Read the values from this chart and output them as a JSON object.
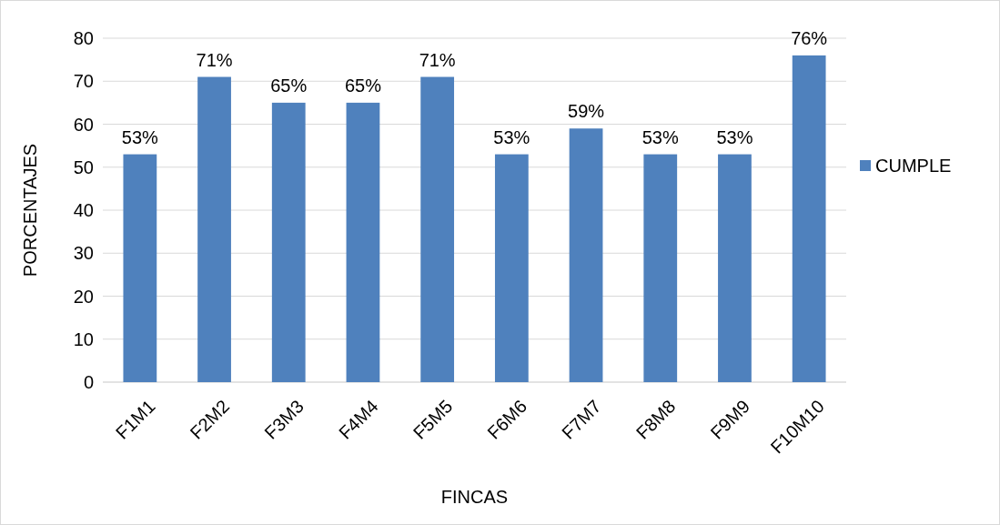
{
  "chart_data": {
    "type": "bar",
    "xlabel": "FINCAS",
    "ylabel": "PORCENTAJES",
    "categories": [
      "F1M1",
      "F2M2",
      "F3M3",
      "F4M4",
      "F5M5",
      "F6M6",
      "F7M7",
      "F8M8",
      "F9M9",
      "F10M10"
    ],
    "series": [
      {
        "name": "CUMPLE",
        "color": "#4f81bd",
        "values": [
          53,
          71,
          65,
          65,
          71,
          53,
          59,
          53,
          53,
          76
        ],
        "value_labels": [
          "53%",
          "71%",
          "65%",
          "65%",
          "71%",
          "53%",
          "59%",
          "53%",
          "53%",
          "76%"
        ]
      }
    ],
    "ylim": [
      0,
      80
    ],
    "yticks": [
      0,
      10,
      20,
      30,
      40,
      50,
      60,
      70,
      80
    ],
    "grid": "y",
    "legend": "right"
  }
}
